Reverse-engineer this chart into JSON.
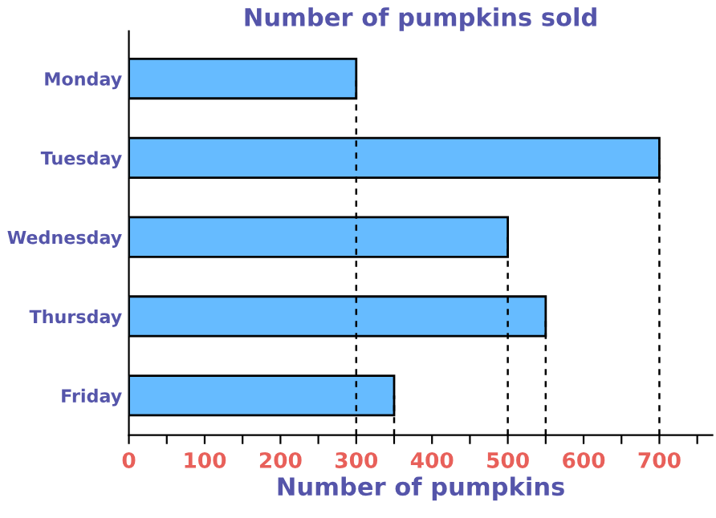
{
  "chart_data": {
    "type": "bar",
    "orientation": "horizontal",
    "title": "Number of pumpkins sold",
    "xlabel": "Number of pumpkins",
    "categories": [
      "Monday",
      "Tuesday",
      "Wednesday",
      "Thursday",
      "Friday"
    ],
    "values": [
      300,
      700,
      500,
      550,
      350
    ],
    "color": "#66bbff",
    "xlim": [
      0,
      770
    ],
    "xticks": [
      0,
      {
        "value": 50,
        "label": null
      },
      100,
      {
        "value": 150,
        "label": null
      },
      200,
      {
        "value": 250,
        "label": null
      },
      300,
      {
        "value": 350,
        "label": null
      },
      400,
      {
        "value": 450,
        "label": null
      },
      500,
      {
        "value": 550,
        "label": null
      },
      600,
      {
        "value": 650,
        "label": null
      },
      700,
      {
        "value": 750,
        "label": null
      }
    ],
    "ref_lines": [
      {
        "axis": "x",
        "value": 300,
        "line_style": "dashed",
        "color": "#000000"
      },
      {
        "axis": "x",
        "value": 350,
        "line_style": "dashed",
        "color": "#000000"
      },
      {
        "axis": "x",
        "value": 500,
        "line_style": "dashed",
        "color": "#000000"
      },
      {
        "axis": "x",
        "value": 550,
        "line_style": "dashed",
        "color": "#000000"
      },
      {
        "axis": "x",
        "value": 700,
        "line_style": "dashed",
        "color": "#000000"
      }
    ],
    "grid": false,
    "legend": false
  }
}
